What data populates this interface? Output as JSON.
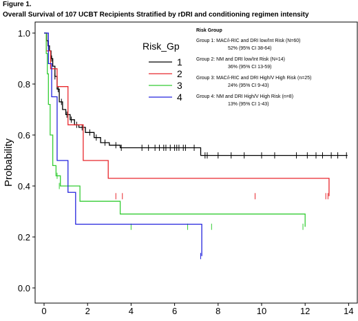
{
  "figure": {
    "label": "Figure 1.",
    "title": "Overall Survival of 107 UCBT Recipients Stratified by rDRI and conditioning regimen intensity"
  },
  "risk_group_panel": {
    "header": "Risk Group",
    "groups": [
      {
        "desc": "Group 1: MAC/i-RIC and DRI low/Int Risk  (N=60)",
        "stat": "52% (95% CI 38-64)"
      },
      {
        "desc": "Group 2: NM and DRI low/Int Risk (N=14)",
        "stat": "36% (95% CI 13-59)"
      },
      {
        "desc": "Group 3: MAC/i-RIC and DRI High/V High Risk (n=25)",
        "stat": "24% (95% CI 9-43)"
      },
      {
        "desc": "Group 4: NM and DRI High/V High Risk (n=8)",
        "stat": "13% (95% CI 1-43)"
      }
    ]
  },
  "chart_data": {
    "type": "line",
    "step": true,
    "title": "",
    "xlabel": "",
    "ylabel": "Probability",
    "xlim": [
      0,
      14
    ],
    "ylim": [
      0,
      1
    ],
    "xticks": [
      0,
      2,
      4,
      6,
      8,
      10,
      12,
      14
    ],
    "yticks": [
      0.0,
      0.2,
      0.4,
      0.6,
      0.8,
      1.0
    ],
    "grid": false,
    "legend": {
      "title": "Risk_Gp",
      "placement": "top-center"
    },
    "colors": {
      "1": "#000000",
      "2": "#e8262b",
      "3": "#33cc33",
      "4": "#2222dd"
    },
    "series": [
      {
        "name": "1",
        "color": "#000000",
        "x": [
          0,
          0.12,
          0.18,
          0.25,
          0.32,
          0.4,
          0.5,
          0.6,
          0.7,
          0.85,
          1.0,
          1.2,
          1.4,
          1.6,
          1.9,
          2.3,
          2.6,
          3.0,
          3.5,
          7.2,
          13.95
        ],
        "y": [
          1.0,
          0.97,
          0.95,
          0.93,
          0.9,
          0.87,
          0.83,
          0.78,
          0.73,
          0.7,
          0.68,
          0.66,
          0.64,
          0.63,
          0.61,
          0.59,
          0.57,
          0.56,
          0.55,
          0.52,
          0.52
        ],
        "censor_x": [
          0.2,
          0.35,
          0.5,
          0.65,
          0.8,
          1.05,
          1.25,
          1.5,
          1.75,
          2.1,
          2.4,
          2.8,
          3.3,
          3.55,
          4.5,
          4.8,
          5.1,
          5.3,
          5.5,
          5.6,
          5.8,
          6.0,
          6.1,
          6.2,
          6.4,
          6.5,
          6.9,
          7.4,
          7.5,
          8.0,
          8.6,
          9.2,
          10.0,
          10.6,
          11.6,
          12.1,
          12.5,
          12.8,
          13.2,
          13.5,
          13.9
        ],
        "censor_y": [
          0.95,
          0.9,
          0.83,
          0.78,
          0.73,
          0.68,
          0.66,
          0.64,
          0.63,
          0.61,
          0.59,
          0.57,
          0.56,
          0.55,
          0.55,
          0.55,
          0.55,
          0.55,
          0.55,
          0.55,
          0.55,
          0.55,
          0.55,
          0.55,
          0.55,
          0.55,
          0.55,
          0.52,
          0.52,
          0.52,
          0.52,
          0.52,
          0.52,
          0.52,
          0.52,
          0.52,
          0.52,
          0.52,
          0.52,
          0.52,
          0.52
        ]
      },
      {
        "name": "2",
        "color": "#e8262b",
        "x": [
          0,
          0.1,
          0.3,
          0.6,
          1.1,
          1.8,
          2.95,
          13.1
        ],
        "y": [
          1.0,
          0.93,
          0.86,
          0.79,
          0.64,
          0.5,
          0.43,
          0.36
        ],
        "censor_x": [
          3.3,
          3.6,
          9.7,
          12.95,
          13.05
        ],
        "censor_y": [
          0.36,
          0.36,
          0.36,
          0.36,
          0.36
        ]
      },
      {
        "name": "3",
        "color": "#33cc33",
        "x": [
          0,
          0.1,
          0.15,
          0.2,
          0.28,
          0.4,
          0.55,
          0.75,
          1.65,
          3.5,
          12.0
        ],
        "y": [
          1.0,
          0.92,
          0.84,
          0.72,
          0.6,
          0.48,
          0.44,
          0.4,
          0.34,
          0.29,
          0.24
        ],
        "censor_x": [
          0.6,
          0.7,
          4.0,
          6.6,
          7.7,
          11.9
        ],
        "censor_y": [
          0.44,
          0.4,
          0.24,
          0.24,
          0.24,
          0.24
        ]
      },
      {
        "name": "4",
        "color": "#2222dd",
        "x": [
          0,
          0.2,
          0.35,
          0.6,
          1.1,
          1.45,
          7.25
        ],
        "y": [
          1.0,
          0.88,
          0.75,
          0.5,
          0.375,
          0.25,
          0.125
        ],
        "censor_x": [
          7.2
        ],
        "censor_y": [
          0.125
        ]
      }
    ]
  }
}
